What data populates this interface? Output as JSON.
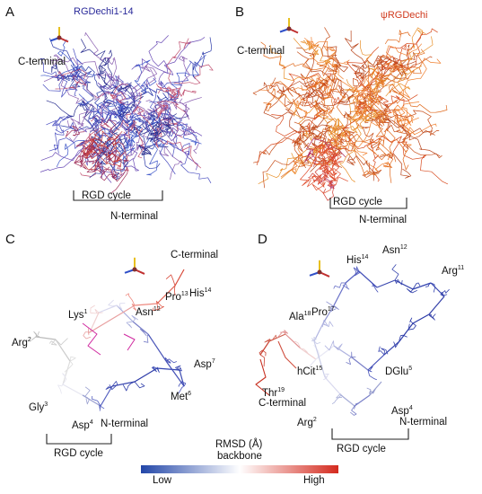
{
  "panels": {
    "a": {
      "letter": "A",
      "title": "RGDechi1-14",
      "title_color": "#2a2a9a",
      "c_terminal": "C-terminal",
      "n_terminal": "N-terminal",
      "rgd_cycle": "RGD cycle"
    },
    "b": {
      "letter": "B",
      "title": "ψRGDechi",
      "title_color": "#d0391c",
      "c_terminal": "C-terminal",
      "n_terminal": "N-terminal",
      "rgd_cycle": "RGD cycle"
    },
    "c": {
      "letter": "C",
      "c_terminal": "C-terminal",
      "n_terminal": "N-terminal",
      "rgd_cycle": "RGD cycle",
      "residues": {
        "his": {
          "name": "His",
          "sup": "14"
        },
        "pro": {
          "name": "Pro",
          "sup": "13"
        },
        "lys": {
          "name": "Lys",
          "sup": "1"
        },
        "asn": {
          "name": "Asn",
          "sup": "12"
        },
        "arg": {
          "name": "Arg",
          "sup": "2"
        },
        "asp7": {
          "name": "Asp",
          "sup": "7"
        },
        "met": {
          "name": "Met",
          "sup": "6"
        },
        "gly": {
          "name": "Gly",
          "sup": "3"
        },
        "asp4": {
          "name": "Asp",
          "sup": "4"
        }
      }
    },
    "d": {
      "letter": "D",
      "c_terminal": "C-terminal",
      "n_terminal": "N-terminal",
      "rgd_cycle": "RGD cycle",
      "residues": {
        "his": {
          "name": "His",
          "sup": "14"
        },
        "asn": {
          "name": "Asn",
          "sup": "12"
        },
        "arg11": {
          "name": "Arg",
          "sup": "11"
        },
        "ala": {
          "name": "Ala",
          "sup": "18"
        },
        "pro": {
          "name": "Pro",
          "sup": "17"
        },
        "hcit": {
          "name": "hCit",
          "sup": "15"
        },
        "dglu": {
          "name": "DGlu",
          "sup": "5"
        },
        "thr": {
          "name": "Thr",
          "sup": "19"
        },
        "arg2": {
          "name": "Arg",
          "sup": "2"
        },
        "asp4": {
          "name": "Asp",
          "sup": "4"
        }
      }
    }
  },
  "legend": {
    "title": "RMSD (Å)",
    "subtitle": "backbone",
    "low_label": "Low",
    "high_label": "High",
    "gradient_colors": [
      "#2246a8",
      "#ffffff",
      "#d42a1e"
    ]
  }
}
